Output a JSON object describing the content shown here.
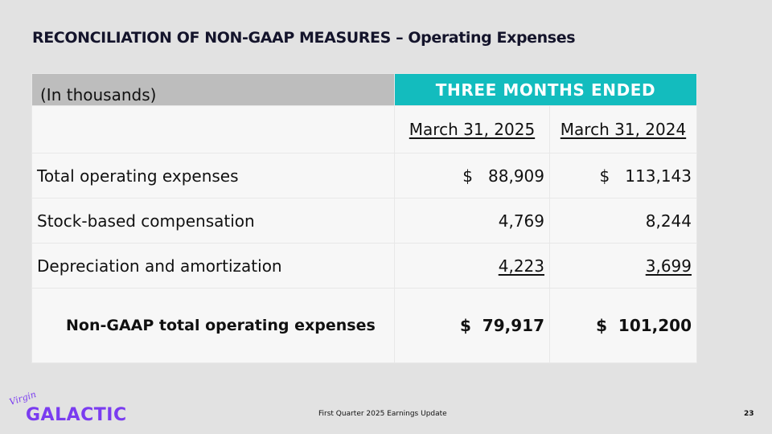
{
  "slide": {
    "title": "RECONCILIATION OF NON-GAAP MEASURES – Operating Expenses",
    "table": {
      "units_label": "(In thousands)",
      "period_header": "THREE MONTHS ENDED",
      "columns": [
        "March 31, 2025",
        "March 31, 2024"
      ],
      "rows": [
        {
          "label": "Total operating expenses",
          "values": [
            "$   88,909",
            "$   113,143"
          ]
        },
        {
          "label": "Stock-based compensation",
          "values": [
            "4,769",
            "8,244"
          ]
        },
        {
          "label": "Depreciation and amortization",
          "values": [
            "4,223",
            "3,699"
          ]
        }
      ],
      "total": {
        "label": "Non-GAAP total operating expenses",
        "values": [
          "$  79,917",
          "$  101,200"
        ]
      }
    },
    "footer": {
      "logo_script": "Virgin",
      "logo_word": "GALACTIC",
      "text": "First Quarter 2025 Earnings Update",
      "page_number": "23"
    },
    "colors": {
      "accent": "#13bcbe",
      "header_gray": "#bdbdbd",
      "brand_purple": "#7a3cf0",
      "title": "#14142b"
    }
  }
}
